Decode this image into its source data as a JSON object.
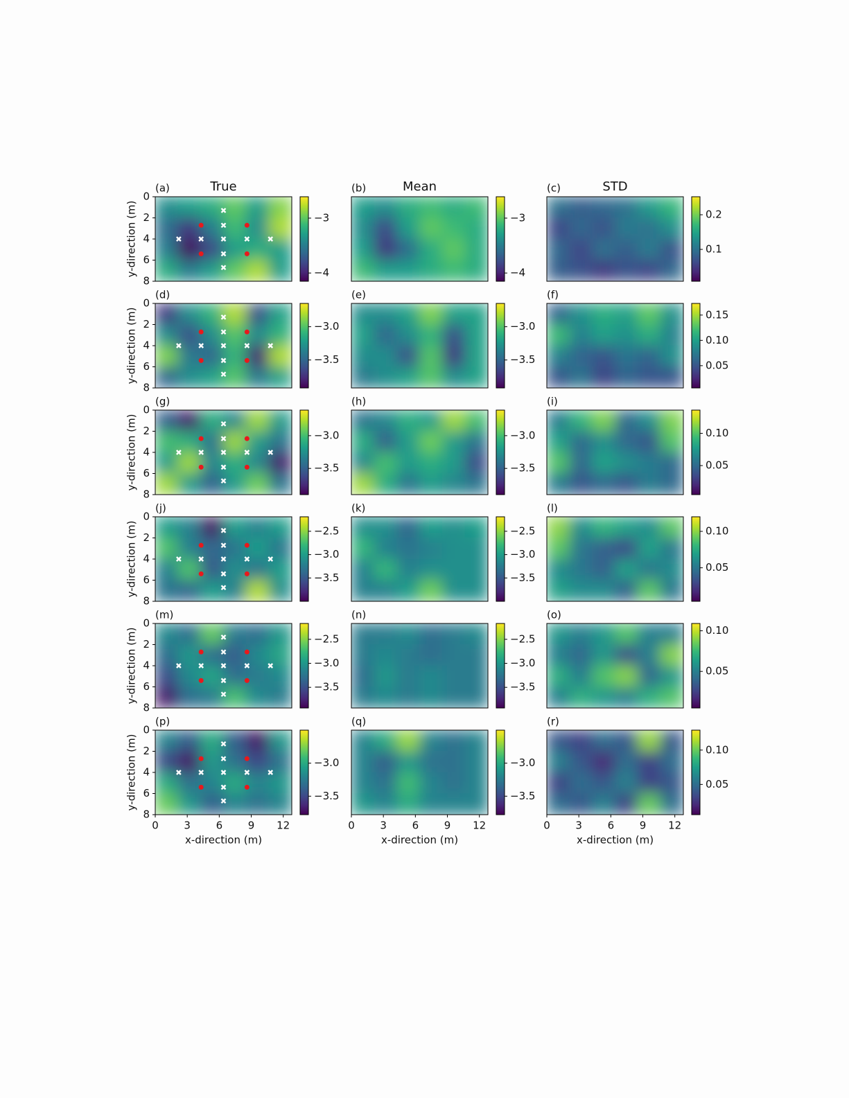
{
  "markers": {
    "observation": {
      "color": "#ffffff",
      "x": [
        6.4,
        6.4,
        2.2,
        4.3,
        6.4,
        8.6,
        10.8,
        6.4,
        6.4
      ],
      "y": [
        1.3,
        2.7,
        4,
        4,
        4,
        4,
        4,
        5.4,
        6.7
      ]
    },
    "pumping": {
      "color": "#e8191c",
      "x": [
        4.3,
        8.6,
        4.3,
        8.6
      ],
      "y": [
        2.7,
        2.7,
        5.4,
        5.4
      ]
    }
  },
  "chart_data": [
    {
      "type": "heatmap",
      "label": "(a)",
      "title": "True",
      "ylabel": "y-direction (m)",
      "markers": true,
      "colormap": "viridis",
      "xlim": [
        0,
        12.8
      ],
      "ylim": [
        8,
        0
      ],
      "yticks": [
        0,
        2,
        4,
        6,
        8
      ],
      "clim": [
        -4.15,
        -2.61
      ],
      "cticks": [
        {
          "value": -4,
          "label": "−4"
        },
        {
          "value": -3,
          "label": "−3"
        }
      ],
      "values": [
        [
          -3.4,
          -3.3,
          -3.2,
          -3.0,
          -3.3,
          -2.9
        ],
        [
          -3.6,
          -3.9,
          -3.5,
          -3.1,
          -3.4,
          -2.8
        ],
        [
          -3.5,
          -4.1,
          -3.8,
          -3.3,
          -3.2,
          -3.3
        ],
        [
          -3.2,
          -3.5,
          -3.3,
          -3.0,
          -2.8,
          -3.3
        ]
      ]
    },
    {
      "type": "heatmap",
      "label": "(b)",
      "title": "Mean",
      "colormap": "viridis",
      "xlim": [
        0,
        12.8
      ],
      "ylim": [
        8,
        0
      ],
      "clim": [
        -4.15,
        -2.61
      ],
      "cticks": [
        {
          "value": -4,
          "label": "−4"
        },
        {
          "value": -3,
          "label": "−3"
        }
      ],
      "values": [
        [
          -3.3,
          -3.4,
          -3.2,
          -3.1,
          -3.2,
          -3.1
        ],
        [
          -3.4,
          -3.8,
          -3.3,
          -3.0,
          -3.1,
          -3.2
        ],
        [
          -3.3,
          -3.9,
          -3.6,
          -3.2,
          -3.0,
          -3.2
        ],
        [
          -3.1,
          -3.3,
          -3.3,
          -3.2,
          -3.1,
          -3.2
        ]
      ]
    },
    {
      "type": "heatmap",
      "label": "(c)",
      "title": "STD",
      "colormap": "viridis",
      "xlim": [
        0,
        12.8
      ],
      "ylim": [
        8,
        0
      ],
      "clim": [
        0.008,
        0.252
      ],
      "cticks": [
        0.1,
        0.2
      ],
      "values": [
        [
          0.1,
          0.08,
          0.09,
          0.1,
          0.14,
          0.17
        ],
        [
          0.06,
          0.09,
          0.07,
          0.11,
          0.1,
          0.13
        ],
        [
          0.09,
          0.06,
          0.1,
          0.08,
          0.11,
          0.07
        ],
        [
          0.08,
          0.07,
          0.05,
          0.07,
          0.06,
          0.09
        ]
      ]
    },
    {
      "type": "heatmap",
      "label": "(d)",
      "ylabel": "y-direction (m)",
      "markers": true,
      "colormap": "viridis",
      "xlim": [
        0,
        12.8
      ],
      "ylim": [
        8,
        0
      ],
      "yticks": [
        0,
        2,
        4,
        6,
        8
      ],
      "clim": [
        -3.92,
        -2.65
      ],
      "cticks": [
        {
          "value": -3.5,
          "label": "−3.5"
        },
        {
          "value": -3,
          "label": "−3.0"
        }
      ],
      "values": [
        [
          -3.7,
          -3.3,
          -3.1,
          -2.8,
          -3.6,
          -3.2
        ],
        [
          -3.3,
          -3.6,
          -3.3,
          -3.0,
          -3.3,
          -3.1
        ],
        [
          -2.9,
          -3.4,
          -3.5,
          -3.1,
          -3.8,
          -2.8
        ],
        [
          -3.5,
          -3.3,
          -3.2,
          -3.0,
          -3.4,
          -3.2
        ]
      ]
    },
    {
      "type": "heatmap",
      "label": "(e)",
      "colormap": "viridis",
      "xlim": [
        0,
        12.8
      ],
      "ylim": [
        8,
        0
      ],
      "clim": [
        -3.92,
        -2.65
      ],
      "cticks": [
        {
          "value": -3.5,
          "label": "−3.5"
        },
        {
          "value": -3,
          "label": "−3.0"
        }
      ],
      "values": [
        [
          -3.3,
          -3.3,
          -3.2,
          -2.9,
          -3.2,
          -3.2
        ],
        [
          -3.2,
          -3.5,
          -3.3,
          -3.1,
          -3.6,
          -3.2
        ],
        [
          -3.3,
          -3.3,
          -3.6,
          -3.0,
          -3.7,
          -3.2
        ],
        [
          -3.4,
          -3.3,
          -3.2,
          -3.0,
          -3.3,
          -3.2
        ]
      ]
    },
    {
      "type": "heatmap",
      "label": "(f)",
      "colormap": "viridis",
      "xlim": [
        0,
        12.8
      ],
      "ylim": [
        8,
        0
      ],
      "clim": [
        0.006,
        0.173
      ],
      "cticks": [
        {
          "value": 0.05,
          "label": "0.05"
        },
        {
          "value": 0.1,
          "label": "0.10"
        },
        0.15
      ],
      "values": [
        [
          0.06,
          0.09,
          0.11,
          0.1,
          0.13,
          0.09
        ],
        [
          0.12,
          0.08,
          0.1,
          0.09,
          0.11,
          0.08
        ],
        [
          0.08,
          0.06,
          0.05,
          0.07,
          0.06,
          0.09
        ],
        [
          0.05,
          0.07,
          0.04,
          0.06,
          0.05,
          0.05
        ]
      ]
    },
    {
      "type": "heatmap",
      "label": "(g)",
      "ylabel": "y-direction (m)",
      "markers": true,
      "colormap": "viridis",
      "xlim": [
        0,
        12.8
      ],
      "ylim": [
        8,
        0
      ],
      "yticks": [
        0,
        2,
        4,
        6,
        8
      ],
      "clim": [
        -3.9,
        -2.61
      ],
      "cticks": [
        {
          "value": -3.5,
          "label": "−3.5"
        },
        {
          "value": -3,
          "label": "−3.0"
        }
      ],
      "values": [
        [
          -3.5,
          -3.8,
          -3.1,
          -3.3,
          -2.8,
          -3.2
        ],
        [
          -3.0,
          -3.1,
          -3.4,
          -2.8,
          -3.2,
          -3.4
        ],
        [
          -3.2,
          -2.8,
          -3.3,
          -3.1,
          -3.3,
          -3.8
        ],
        [
          -2.8,
          -3.2,
          -3.5,
          -3.2,
          -2.9,
          -3.4
        ]
      ]
    },
    {
      "type": "heatmap",
      "label": "(h)",
      "colormap": "viridis",
      "xlim": [
        0,
        12.8
      ],
      "ylim": [
        8,
        0
      ],
      "clim": [
        -3.9,
        -2.61
      ],
      "cticks": [
        {
          "value": -3.5,
          "label": "−3.5"
        },
        {
          "value": -3,
          "label": "−3.0"
        }
      ],
      "values": [
        [
          -3.4,
          -3.3,
          -3.1,
          -3.2,
          -2.8,
          -3.0
        ],
        [
          -3.1,
          -3.5,
          -3.2,
          -2.9,
          -3.2,
          -3.4
        ],
        [
          -3.3,
          -3.0,
          -3.2,
          -3.1,
          -3.2,
          -3.6
        ],
        [
          -2.8,
          -3.1,
          -3.4,
          -3.2,
          -3.3,
          -3.4
        ]
      ]
    },
    {
      "type": "heatmap",
      "label": "(i)",
      "colormap": "viridis",
      "xlim": [
        0,
        12.8
      ],
      "ylim": [
        8,
        0
      ],
      "clim": [
        0.005,
        0.136
      ],
      "cticks": [
        {
          "value": 0.05,
          "label": "0.05"
        },
        {
          "value": 0.1,
          "label": "0.10"
        }
      ],
      "values": [
        [
          0.06,
          0.09,
          0.11,
          0.05,
          0.07,
          0.11
        ],
        [
          0.08,
          0.05,
          0.07,
          0.05,
          0.04,
          0.1
        ],
        [
          0.1,
          0.05,
          0.08,
          0.07,
          0.06,
          0.05
        ],
        [
          0.06,
          0.04,
          0.05,
          0.04,
          0.06,
          0.05
        ]
      ]
    },
    {
      "type": "heatmap",
      "label": "(j)",
      "ylabel": "y-direction (m)",
      "markers": true,
      "colormap": "viridis",
      "xlim": [
        0,
        12.8
      ],
      "ylim": [
        8,
        0
      ],
      "yticks": [
        0,
        2,
        4,
        6,
        8
      ],
      "clim": [
        -4.0,
        -2.19
      ],
      "cticks": [
        {
          "value": -3.5,
          "label": "−3.5"
        },
        {
          "value": -3,
          "label": "−3.0"
        },
        {
          "value": -2.5,
          "label": "−2.5"
        }
      ],
      "values": [
        [
          -3.0,
          -3.2,
          -3.9,
          -3.0,
          -3.2,
          -3.0
        ],
        [
          -2.7,
          -3.2,
          -3.4,
          -3.3,
          -3.0,
          -3.3
        ],
        [
          -3.2,
          -2.7,
          -3.5,
          -3.1,
          -3.3,
          -3.0
        ],
        [
          -3.3,
          -3.4,
          -3.0,
          -3.2,
          -2.4,
          -3.1
        ]
      ]
    },
    {
      "type": "heatmap",
      "label": "(k)",
      "colormap": "viridis",
      "xlim": [
        0,
        12.8
      ],
      "ylim": [
        8,
        0
      ],
      "clim": [
        -4.0,
        -2.19
      ],
      "cticks": [
        {
          "value": -3.5,
          "label": "−3.5"
        },
        {
          "value": -3,
          "label": "−3.0"
        },
        {
          "value": -2.5,
          "label": "−2.5"
        }
      ],
      "values": [
        [
          -3.1,
          -3.1,
          -3.4,
          -3.0,
          -3.1,
          -3.0
        ],
        [
          -2.8,
          -3.2,
          -3.3,
          -3.2,
          -3.1,
          -3.1
        ],
        [
          -3.2,
          -2.8,
          -3.2,
          -3.1,
          -3.1,
          -3.1
        ],
        [
          -3.2,
          -3.2,
          -3.0,
          -2.6,
          -3.1,
          -3.1
        ]
      ]
    },
    {
      "type": "heatmap",
      "label": "(l)",
      "colormap": "viridis",
      "xlim": [
        0,
        12.8
      ],
      "ylim": [
        8,
        0
      ],
      "clim": [
        0.004,
        0.12
      ],
      "cticks": [
        {
          "value": 0.05,
          "label": "0.05"
        },
        {
          "value": 0.1,
          "label": "0.10"
        }
      ],
      "values": [
        [
          0.1,
          0.06,
          0.08,
          0.07,
          0.06,
          0.09
        ],
        [
          0.09,
          0.05,
          0.04,
          0.03,
          0.07,
          0.05
        ],
        [
          0.06,
          0.05,
          0.04,
          0.07,
          0.05,
          0.06
        ],
        [
          0.07,
          0.06,
          0.06,
          0.04,
          0.09,
          0.05
        ]
      ]
    },
    {
      "type": "heatmap",
      "label": "(m)",
      "ylabel": "y-direction (m)",
      "markers": true,
      "colormap": "viridis",
      "xlim": [
        0,
        12.8
      ],
      "ylim": [
        8,
        0
      ],
      "yticks": [
        0,
        2,
        4,
        6,
        8
      ],
      "clim": [
        -3.93,
        -2.17
      ],
      "cticks": [
        {
          "value": -3.5,
          "label": "−3.5"
        },
        {
          "value": -3,
          "label": "−3.0"
        },
        {
          "value": -2.5,
          "label": "−2.5"
        }
      ],
      "values": [
        [
          -3.1,
          -3.3,
          -2.6,
          -3.2,
          -3.3,
          -3.0
        ],
        [
          -3.3,
          -3.0,
          -3.3,
          -3.4,
          -3.1,
          -2.9
        ],
        [
          -3.5,
          -3.1,
          -2.9,
          -3.3,
          -3.2,
          -3.1
        ],
        [
          -3.8,
          -3.3,
          -3.2,
          -2.7,
          -3.1,
          -3.2
        ]
      ]
    },
    {
      "type": "heatmap",
      "label": "(n)",
      "colormap": "viridis",
      "xlim": [
        0,
        12.8
      ],
      "ylim": [
        8,
        0
      ],
      "clim": [
        -3.93,
        -2.17
      ],
      "cticks": [
        {
          "value": -3.5,
          "label": "−3.5"
        },
        {
          "value": -3,
          "label": "−3.0"
        },
        {
          "value": -2.5,
          "label": "−2.5"
        }
      ],
      "values": [
        [
          -3.2,
          -3.2,
          -3.1,
          -3.3,
          -3.2,
          -3.1
        ],
        [
          -3.2,
          -3.1,
          -3.2,
          -3.3,
          -3.2,
          -3.2
        ],
        [
          -3.3,
          -3.0,
          -3.2,
          -3.1,
          -3.2,
          -3.2
        ],
        [
          -3.2,
          -3.1,
          -3.2,
          -3.1,
          -3.2,
          -3.2
        ]
      ]
    },
    {
      "type": "heatmap",
      "label": "(o)",
      "colormap": "viridis",
      "xlim": [
        0,
        12.8
      ],
      "ylim": [
        8,
        0
      ],
      "clim": [
        0.005,
        0.109
      ],
      "cticks": [
        {
          "value": 0.05,
          "label": "0.05"
        },
        {
          "value": 0.1,
          "label": "0.10"
        }
      ],
      "values": [
        [
          0.06,
          0.05,
          0.06,
          0.08,
          0.05,
          0.05
        ],
        [
          0.05,
          0.04,
          0.06,
          0.03,
          0.05,
          0.09
        ],
        [
          0.07,
          0.05,
          0.08,
          0.09,
          0.04,
          0.06
        ],
        [
          0.05,
          0.07,
          0.06,
          0.05,
          0.07,
          0.08
        ]
      ]
    },
    {
      "type": "heatmap",
      "label": "(p)",
      "ylabel": "y-direction (m)",
      "xlabel": "x-direction (m)",
      "markers": true,
      "colormap": "viridis",
      "xlim": [
        0,
        12.8
      ],
      "ylim": [
        8,
        0
      ],
      "xticks": [
        0,
        3,
        6,
        9,
        12
      ],
      "yticks": [
        0,
        2,
        4,
        6,
        8
      ],
      "clim": [
        -3.78,
        -2.5
      ],
      "cticks": [
        {
          "value": -3.5,
          "label": "−3.5"
        },
        {
          "value": -3,
          "label": "−3.0"
        }
      ],
      "values": [
        [
          -3.2,
          -3.4,
          -3.0,
          -3.4,
          -3.7,
          -3.1
        ],
        [
          -3.5,
          -3.7,
          -3.1,
          -3.3,
          -3.5,
          -3.3
        ],
        [
          -3.0,
          -3.3,
          -3.2,
          -3.0,
          -3.2,
          -3.1
        ],
        [
          -2.8,
          -3.1,
          -3.4,
          -3.2,
          -3.3,
          -3.2
        ]
      ]
    },
    {
      "type": "heatmap",
      "label": "(q)",
      "xlabel": "x-direction (m)",
      "colormap": "viridis",
      "xlim": [
        0,
        12.8
      ],
      "ylim": [
        8,
        0
      ],
      "xticks": [
        0,
        3,
        6,
        9,
        12
      ],
      "clim": [
        -3.78,
        -2.5
      ],
      "cticks": [
        {
          "value": -3.5,
          "label": "−3.5"
        },
        {
          "value": -3,
          "label": "−3.0"
        }
      ],
      "values": [
        [
          -3.2,
          -3.0,
          -2.7,
          -3.2,
          -3.3,
          -3.2
        ],
        [
          -3.2,
          -3.4,
          -3.1,
          -3.3,
          -3.3,
          -3.2
        ],
        [
          -3.2,
          -3.3,
          -2.9,
          -3.2,
          -3.3,
          -3.2
        ],
        [
          -3.1,
          -3.2,
          -3.0,
          -3.2,
          -3.2,
          -3.2
        ]
      ]
    },
    {
      "type": "heatmap",
      "label": "(r)",
      "xlabel": "x-direction (m)",
      "colormap": "viridis",
      "xlim": [
        0,
        12.8
      ],
      "ylim": [
        8,
        0
      ],
      "xticks": [
        0,
        3,
        6,
        9,
        12
      ],
      "clim": [
        0.006,
        0.129
      ],
      "cticks": [
        {
          "value": 0.05,
          "label": "0.05"
        },
        {
          "value": 0.1,
          "label": "0.10"
        }
      ],
      "values": [
        [
          0.04,
          0.03,
          0.05,
          0.04,
          0.11,
          0.04
        ],
        [
          0.06,
          0.04,
          0.02,
          0.05,
          0.03,
          0.05
        ],
        [
          0.03,
          0.05,
          0.04,
          0.06,
          0.03,
          0.04
        ],
        [
          0.05,
          0.04,
          0.06,
          0.03,
          0.1,
          0.05
        ]
      ]
    }
  ]
}
